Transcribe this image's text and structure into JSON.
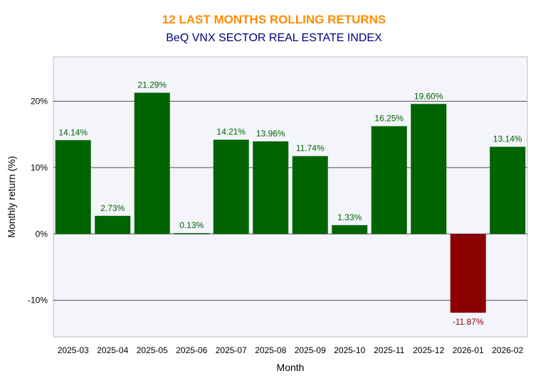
{
  "chart_data": {
    "type": "bar",
    "title": "12 LAST MONTHS ROLLING RETURNS",
    "subtitle": "BeQ VNX SECTOR REAL ESTATE INDEX",
    "xlabel": "Month",
    "ylabel": "Monthly return (%)",
    "categories": [
      "2025-03",
      "2025-04",
      "2025-05",
      "2025-06",
      "2025-07",
      "2025-08",
      "2025-09",
      "2025-10",
      "2025-11",
      "2025-12",
      "2026-01",
      "2026-02"
    ],
    "values": [
      14.14,
      2.73,
      21.29,
      0.13,
      14.21,
      13.96,
      11.74,
      1.33,
      16.25,
      19.6,
      -11.87,
      13.14
    ],
    "labels": [
      "14.14%",
      "2.73%",
      "21.29%",
      "0.13%",
      "14.21%",
      "13.96%",
      "11.74%",
      "1.33%",
      "16.25%",
      "19.60%",
      "-11.87%",
      "13.14%"
    ],
    "ylim": [
      -15.5,
      26.7
    ],
    "yticks": [
      -10,
      0,
      10,
      20
    ],
    "ytick_labels": [
      "-10%",
      "0%",
      "10%",
      "20%"
    ],
    "grid": true,
    "colors": {
      "positive": "#006400",
      "negative": "#8b0000",
      "plot_bg": "#f4f4fb",
      "grid": "#555555"
    }
  }
}
